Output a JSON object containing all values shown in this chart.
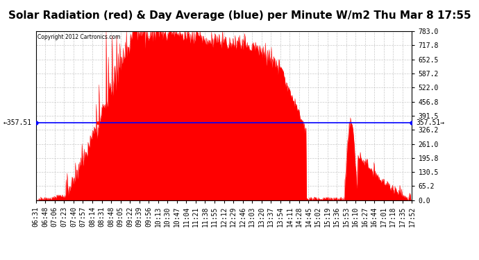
{
  "title": "Solar Radiation (red) & Day Average (blue) per Minute W/m2 Thu Mar 8 17:55",
  "copyright": "Copyright 2012 Cartronics.com",
  "avg_value": 357.51,
  "ymax": 783.0,
  "ymin": 0.0,
  "yticks_right": [
    783.0,
    717.8,
    652.5,
    587.2,
    522.0,
    456.8,
    391.5,
    326.2,
    261.0,
    195.8,
    130.5,
    65.2,
    0.0
  ],
  "bg_color": "#ffffff",
  "fill_color": "#ff0000",
  "line_color": "#0000ff",
  "grid_color": "#bbbbbb",
  "title_fontsize": 11,
  "label_fontsize": 7,
  "annot_fontsize": 7,
  "xtick_labels": [
    "06:31",
    "06:48",
    "07:06",
    "07:23",
    "07:40",
    "07:57",
    "08:14",
    "08:31",
    "08:48",
    "09:05",
    "09:22",
    "09:39",
    "09:56",
    "10:13",
    "10:30",
    "10:47",
    "11:04",
    "11:21",
    "11:38",
    "11:55",
    "12:12",
    "12:29",
    "12:46",
    "13:03",
    "13:20",
    "13:37",
    "13:54",
    "14:11",
    "14:28",
    "14:45",
    "15:02",
    "15:19",
    "15:36",
    "15:53",
    "16:10",
    "16:27",
    "16:44",
    "17:01",
    "17:18",
    "17:35",
    "17:52"
  ],
  "n_points": 686
}
